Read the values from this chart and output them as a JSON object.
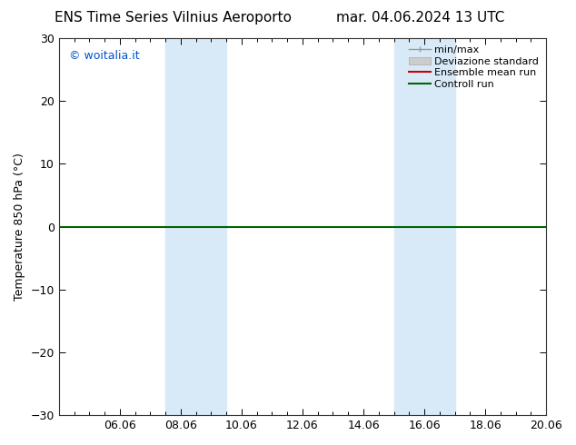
{
  "title_left": "ENS Time Series Vilnius Aeroporto",
  "title_right": "mar. 04.06.2024 13 UTC",
  "ylabel": "Temperature 850 hPa (°C)",
  "watermark": "© woitalia.it",
  "ylim": [
    -30,
    30
  ],
  "yticks": [
    -30,
    -20,
    -10,
    0,
    10,
    20,
    30
  ],
  "xlim": [
    0,
    16
  ],
  "xtick_labels": [
    "06.06",
    "08.06",
    "10.06",
    "12.06",
    "14.06",
    "16.06",
    "18.06",
    "20.06"
  ],
  "xtick_positions": [
    2,
    4,
    6,
    8,
    10,
    12,
    14,
    16
  ],
  "shaded_bands": [
    {
      "x_start": 3.5,
      "x_end": 5.5
    },
    {
      "x_start": 11,
      "x_end": 13
    }
  ],
  "hline_y": 0,
  "hline_color": "#006400",
  "band_color": "#d8eaf8",
  "background_color": "#ffffff",
  "plot_background": "#ffffff",
  "legend_entries": [
    {
      "label": "min/max",
      "color": "#999999",
      "style": "minmax"
    },
    {
      "label": "Deviazione standard",
      "color": "#cccccc",
      "style": "stddev"
    },
    {
      "label": "Ensemble mean run",
      "color": "#cc0000",
      "style": "line"
    },
    {
      "label": "Controll run",
      "color": "#006400",
      "style": "line"
    }
  ],
  "fig_width": 6.34,
  "fig_height": 4.9,
  "dpi": 100,
  "title_fontsize": 11,
  "label_fontsize": 9,
  "tick_fontsize": 9
}
